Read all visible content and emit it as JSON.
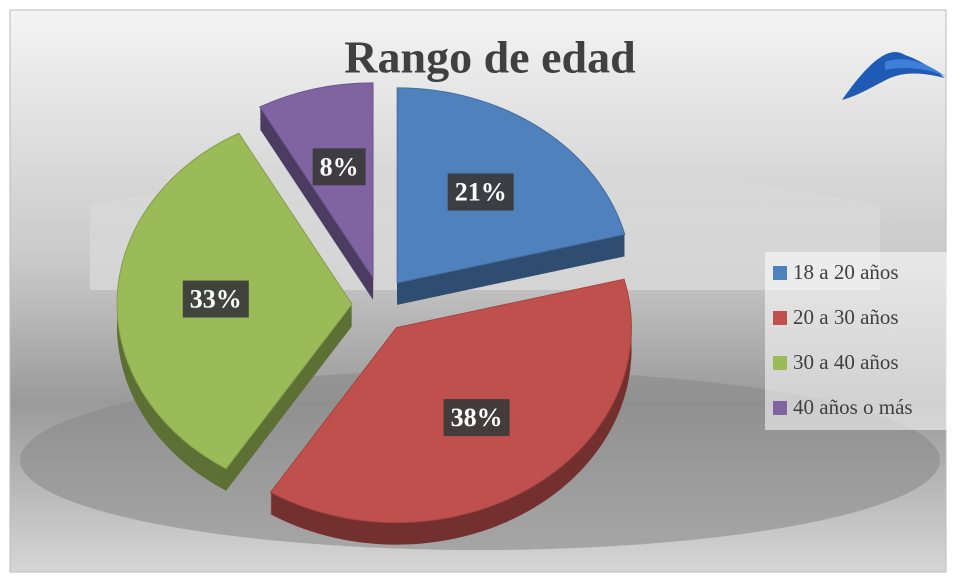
{
  "chart_data": {
    "type": "pie",
    "title": "Rango de edad",
    "categories": [
      "18 a 20 años",
      "20 a 30 años",
      "30 a 40 años",
      "40 años o más"
    ],
    "values": [
      21,
      38,
      33,
      8
    ],
    "value_labels": [
      "21%",
      "38%",
      "33%",
      "8%"
    ],
    "colors": [
      "#4f81bd",
      "#c0504d",
      "#9bbb59",
      "#8064a2"
    ],
    "legend": "right"
  }
}
